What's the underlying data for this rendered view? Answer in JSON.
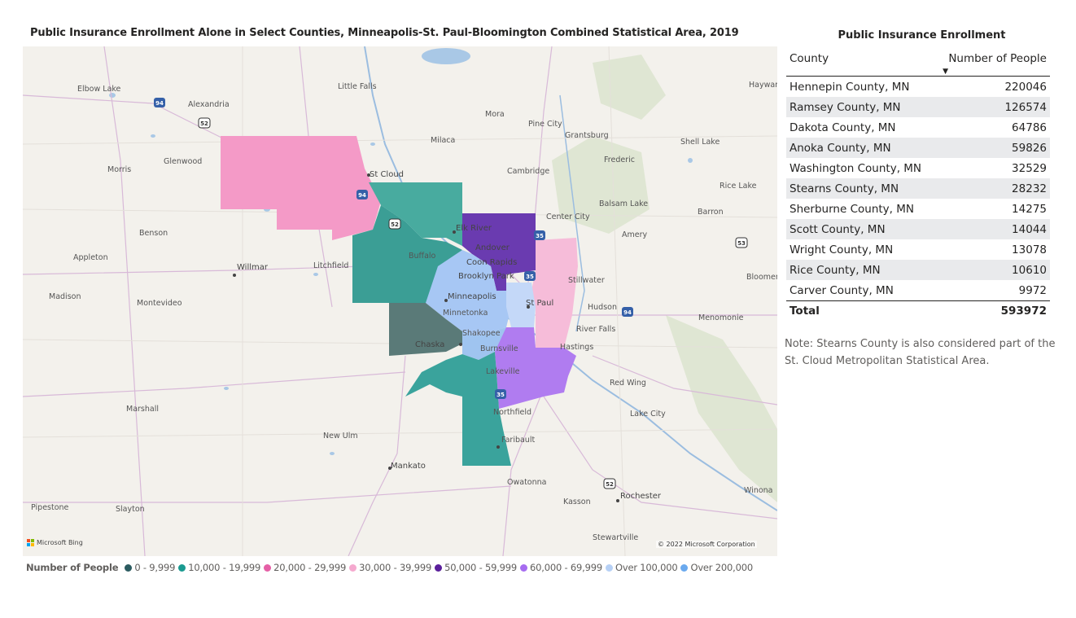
{
  "map": {
    "title": "Public Insurance Enrollment Alone in Select Counties, Minneapolis-St. Paul-Bloomington Combined Statistical Area, 2019",
    "attribution": "Microsoft Bing",
    "copyright": "© 2022 Microsoft Corporation",
    "places": [
      {
        "name": "Elbow Lake"
      },
      {
        "name": "Alexandria"
      },
      {
        "name": "Little Falls"
      },
      {
        "name": "Mora"
      },
      {
        "name": "Pine City"
      },
      {
        "name": "Grantsburg"
      },
      {
        "name": "Hayward"
      },
      {
        "name": "Milaca"
      },
      {
        "name": "Shell Lake"
      },
      {
        "name": "Morris"
      },
      {
        "name": "Glenwood"
      },
      {
        "name": "St Cloud"
      },
      {
        "name": "Cambridge"
      },
      {
        "name": "Frederic"
      },
      {
        "name": "Rice Lake"
      },
      {
        "name": "Balsam Lake"
      },
      {
        "name": "Barron"
      },
      {
        "name": "Elk River"
      },
      {
        "name": "Center City"
      },
      {
        "name": "Benson"
      },
      {
        "name": "Andover"
      },
      {
        "name": "Amery"
      },
      {
        "name": "Appleton"
      },
      {
        "name": "Buffalo"
      },
      {
        "name": "Coon Rapids"
      },
      {
        "name": "Willmar"
      },
      {
        "name": "Litchfield"
      },
      {
        "name": "Brooklyn Park"
      },
      {
        "name": "Stillwater"
      },
      {
        "name": "Bloomer"
      },
      {
        "name": "Madison"
      },
      {
        "name": "Minneapolis"
      },
      {
        "name": "Montevideo"
      },
      {
        "name": "St Paul"
      },
      {
        "name": "Hudson"
      },
      {
        "name": "Minnetonka"
      },
      {
        "name": "Menomonie"
      },
      {
        "name": "River Falls"
      },
      {
        "name": "Shakopee"
      },
      {
        "name": "Chaska"
      },
      {
        "name": "Burnsville"
      },
      {
        "name": "Hastings"
      },
      {
        "name": "Lakeville"
      },
      {
        "name": "Red Wing"
      },
      {
        "name": "Marshall"
      },
      {
        "name": "Lake City"
      },
      {
        "name": "Northfield"
      },
      {
        "name": "New Ulm"
      },
      {
        "name": "Faribault"
      },
      {
        "name": "Mankato"
      },
      {
        "name": "Owatonna"
      },
      {
        "name": "Pipestone"
      },
      {
        "name": "Slayton"
      },
      {
        "name": "Kasson"
      },
      {
        "name": "Rochester"
      },
      {
        "name": "Winona"
      },
      {
        "name": "Stewartville"
      }
    ],
    "highways": [
      "94",
      "52",
      "94",
      "52",
      "35",
      "35",
      "94",
      "53",
      "52",
      "35"
    ]
  },
  "legend": {
    "title": "Number of People",
    "items": [
      {
        "label": "0 - 9,999",
        "color": "#2b5b60"
      },
      {
        "label": "10,000 - 19,999",
        "color": "#1a9a90"
      },
      {
        "label": "20,000 - 29,999",
        "color": "#e55fa6"
      },
      {
        "label": "30,000 - 39,999",
        "color": "#f5a9cf"
      },
      {
        "label": "50,000 - 59,999",
        "color": "#5a1f9b"
      },
      {
        "label": "60,000 - 69,999",
        "color": "#a66cf0"
      },
      {
        "label": "Over 100,000",
        "color": "#b6d0f5"
      },
      {
        "label": "Over 200,000",
        "color": "#6aa9ee"
      }
    ]
  },
  "table": {
    "title": "Public Insurance Enrollment",
    "col_county": "County",
    "col_people": "Number of People",
    "rows": [
      {
        "county": "Hennepin County, MN",
        "people": "220046"
      },
      {
        "county": "Ramsey County, MN",
        "people": "126574"
      },
      {
        "county": "Dakota County, MN",
        "people": "64786"
      },
      {
        "county": "Anoka County, MN",
        "people": "59826"
      },
      {
        "county": "Washington County, MN",
        "people": "32529"
      },
      {
        "county": "Stearns County, MN",
        "people": "28232"
      },
      {
        "county": "Sherburne County, MN",
        "people": "14275"
      },
      {
        "county": "Scott County, MN",
        "people": "14044"
      },
      {
        "county": "Wright County, MN",
        "people": "13078"
      },
      {
        "county": "Rice County, MN",
        "people": "10610"
      },
      {
        "county": "Carver County, MN",
        "people": "9972"
      }
    ],
    "total_label": "Total",
    "total_value": "593972"
  },
  "note": "Note: Stearns County is also considered part of the St. Cloud Metropolitan Statistical Area."
}
